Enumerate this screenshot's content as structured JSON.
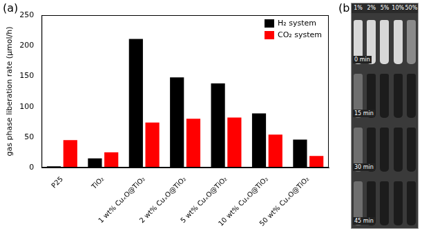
{
  "chart_data": {
    "type": "bar",
    "panel": "(a)",
    "y_label": "gas phase liberation rate (μmol/h)",
    "categories": [
      "P25",
      "TiO₂",
      "1 wt% CuₓO@TiO₂",
      "2 wt% CuₓO@TiO₂",
      "5 wt% CuₓO@TiO₂",
      "10 wt% CuₓO@TiO₂",
      "50 wt% CuₓO@TiO₂"
    ],
    "series": [
      {
        "name": "H₂ system",
        "color": "#000000",
        "values": [
          2,
          15,
          211,
          148,
          138,
          89,
          46
        ]
      },
      {
        "name": "CO₂ system",
        "color": "#ff0000",
        "values": [
          45,
          25,
          74,
          80,
          82,
          54,
          19
        ]
      }
    ],
    "ylim": [
      0,
      250
    ],
    "yticks": [
      0,
      50,
      100,
      150,
      200,
      250
    ],
    "grid": false,
    "legend": "upper right"
  },
  "photo": {
    "panel": "(b)",
    "columns": [
      "1%",
      "2%",
      "5%",
      "10%",
      "50%"
    ],
    "rows": [
      "0 min",
      "15 min",
      "30 min",
      "45 min"
    ]
  }
}
